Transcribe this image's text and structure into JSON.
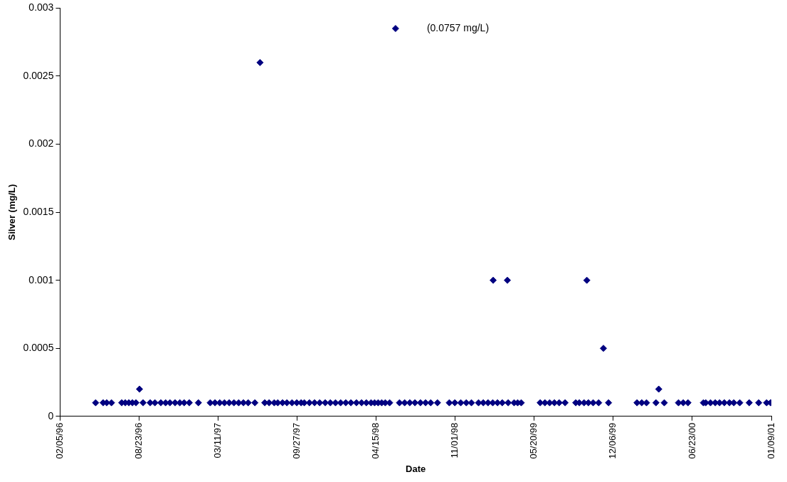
{
  "chart_data": {
    "type": "scatter",
    "xlabel": "Date",
    "ylabel": "Silver (mg/L)",
    "marker": "diamond",
    "grid": false,
    "legend": false,
    "xlim": [
      "1996-02-05",
      "2001-01-09"
    ],
    "xticks": [
      {
        "value": "1996-02-05",
        "label": "02/05/96"
      },
      {
        "value": "1996-08-23",
        "label": "08/23/96"
      },
      {
        "value": "1997-03-11",
        "label": "03/11/97"
      },
      {
        "value": "1997-09-27",
        "label": "09/27/97"
      },
      {
        "value": "1998-04-15",
        "label": "04/15/98"
      },
      {
        "value": "1998-11-01",
        "label": "11/01/98"
      },
      {
        "value": "1999-05-20",
        "label": "05/20/99"
      },
      {
        "value": "1999-12-06",
        "label": "12/06/99"
      },
      {
        "value": "2000-06-23",
        "label": "06/23/00"
      },
      {
        "value": "2001-01-09",
        "label": "01/09/01"
      }
    ],
    "ylim": [
      0,
      0.003
    ],
    "yticks": [
      0,
      0.0005,
      0.001,
      0.0015,
      0.002,
      0.0025,
      0.003
    ],
    "annotations": [
      "(0.0757 mg/L)"
    ],
    "series": [
      {
        "color": "#000080",
        "x": [
          "1996-05-05",
          "1996-05-24",
          "1996-06-02",
          "1996-06-14",
          "1996-07-10",
          "1996-07-19",
          "1996-07-28",
          "1996-08-06",
          "1996-08-15",
          "1996-08-24",
          "1996-09-02",
          "1996-09-20",
          "1996-10-02",
          "1996-10-17",
          "1996-10-29",
          "1996-11-09",
          "1996-11-22",
          "1996-12-04",
          "1996-12-15",
          "1996-12-28",
          "1997-01-20",
          "1997-02-19",
          "1997-03-03",
          "1997-03-15",
          "1997-03-27",
          "1997-04-08",
          "1997-04-20",
          "1997-05-02",
          "1997-05-14",
          "1997-05-26",
          "1997-06-12",
          "1997-06-25",
          "1997-07-07",
          "1997-07-18",
          "1997-07-31",
          "1997-08-09",
          "1997-08-21",
          "1997-09-01",
          "1997-09-14",
          "1997-09-26",
          "1997-10-07",
          "1997-10-15",
          "1997-10-28",
          "1997-11-10",
          "1997-11-23",
          "1997-12-07",
          "1997-12-20",
          "1998-01-02",
          "1998-01-15",
          "1998-01-28",
          "1998-02-10",
          "1998-02-24",
          "1998-03-09",
          "1998-03-21",
          "1998-04-02",
          "1998-04-11",
          "1998-04-20",
          "1998-04-29",
          "1998-05-08",
          "1998-05-19",
          "1998-06-03",
          "1998-06-13",
          "1998-06-26",
          "1998-07-09",
          "1998-07-22",
          "1998-08-05",
          "1998-08-18",
          "1998-08-31",
          "1998-09-17",
          "1998-10-17",
          "1998-10-31",
          "1998-11-15",
          "1998-11-29",
          "1998-12-12",
          "1998-12-30",
          "1999-01-11",
          "1999-01-23",
          "1999-02-04",
          "1999-02-05",
          "1999-02-16",
          "1999-02-28",
          "1999-03-13",
          "1999-03-15",
          "1999-03-30",
          "1999-04-08",
          "1999-04-17",
          "1999-06-04",
          "1999-06-16",
          "1999-06-28",
          "1999-07-10",
          "1999-07-22",
          "1999-08-06",
          "1999-09-02",
          "1999-09-11",
          "1999-09-23",
          "1999-09-30",
          "1999-10-04",
          "1999-10-16",
          "1999-10-30",
          "1999-11-11",
          "1999-11-24",
          "2000-02-04",
          "2000-02-16",
          "2000-02-28",
          "2000-03-23",
          "2000-03-30",
          "2000-04-13",
          "2000-05-19",
          "2000-05-31",
          "2000-06-12",
          "2000-07-21",
          "2000-07-27",
          "2000-08-08",
          "2000-08-20",
          "2000-08-31",
          "2000-09-12",
          "2000-09-25",
          "2000-10-06",
          "2000-10-21",
          "2000-11-14",
          "2000-12-08",
          "2000-12-28",
          "2001-01-07"
        ],
        "values": [
          0.0001,
          0.0001,
          0.0001,
          0.0001,
          0.0001,
          0.0001,
          0.0001,
          0.0001,
          0.0001,
          0.0002,
          0.0001,
          0.0001,
          0.0001,
          0.0001,
          0.0001,
          0.0001,
          0.0001,
          0.0001,
          0.0001,
          0.0001,
          0.0001,
          0.0001,
          0.0001,
          0.0001,
          0.0001,
          0.0001,
          0.0001,
          0.0001,
          0.0001,
          0.0001,
          0.0001,
          0.0026,
          0.0001,
          0.0001,
          0.0001,
          0.0001,
          0.0001,
          0.0001,
          0.0001,
          0.0001,
          0.0001,
          0.0001,
          0.0001,
          0.0001,
          0.0001,
          0.0001,
          0.0001,
          0.0001,
          0.0001,
          0.0001,
          0.0001,
          0.0001,
          0.0001,
          0.0001,
          0.0001,
          0.0001,
          0.0001,
          0.0001,
          0.0001,
          0.0001,
          0.00285,
          0.0001,
          0.0001,
          0.0001,
          0.0001,
          0.0001,
          0.0001,
          0.0001,
          0.0001,
          0.0001,
          0.0001,
          0.0001,
          0.0001,
          0.0001,
          0.0001,
          0.0001,
          0.0001,
          0.0001,
          0.001,
          0.0001,
          0.0001,
          0.001,
          0.0001,
          0.0001,
          0.0001,
          0.0001,
          0.0001,
          0.0001,
          0.0001,
          0.0001,
          0.0001,
          0.0001,
          0.0001,
          0.0001,
          0.0001,
          0.001,
          0.0001,
          0.0001,
          0.0001,
          0.0005,
          0.0001,
          0.0001,
          0.0001,
          0.0001,
          0.0001,
          0.0002,
          0.0001,
          0.0001,
          0.0001,
          0.0001,
          0.0001,
          0.0001,
          0.0001,
          0.0001,
          0.0001,
          0.0001,
          0.0001,
          0.0001,
          0.0001,
          0.0001,
          0.0001,
          0.0001,
          0.0001
        ]
      }
    ]
  }
}
